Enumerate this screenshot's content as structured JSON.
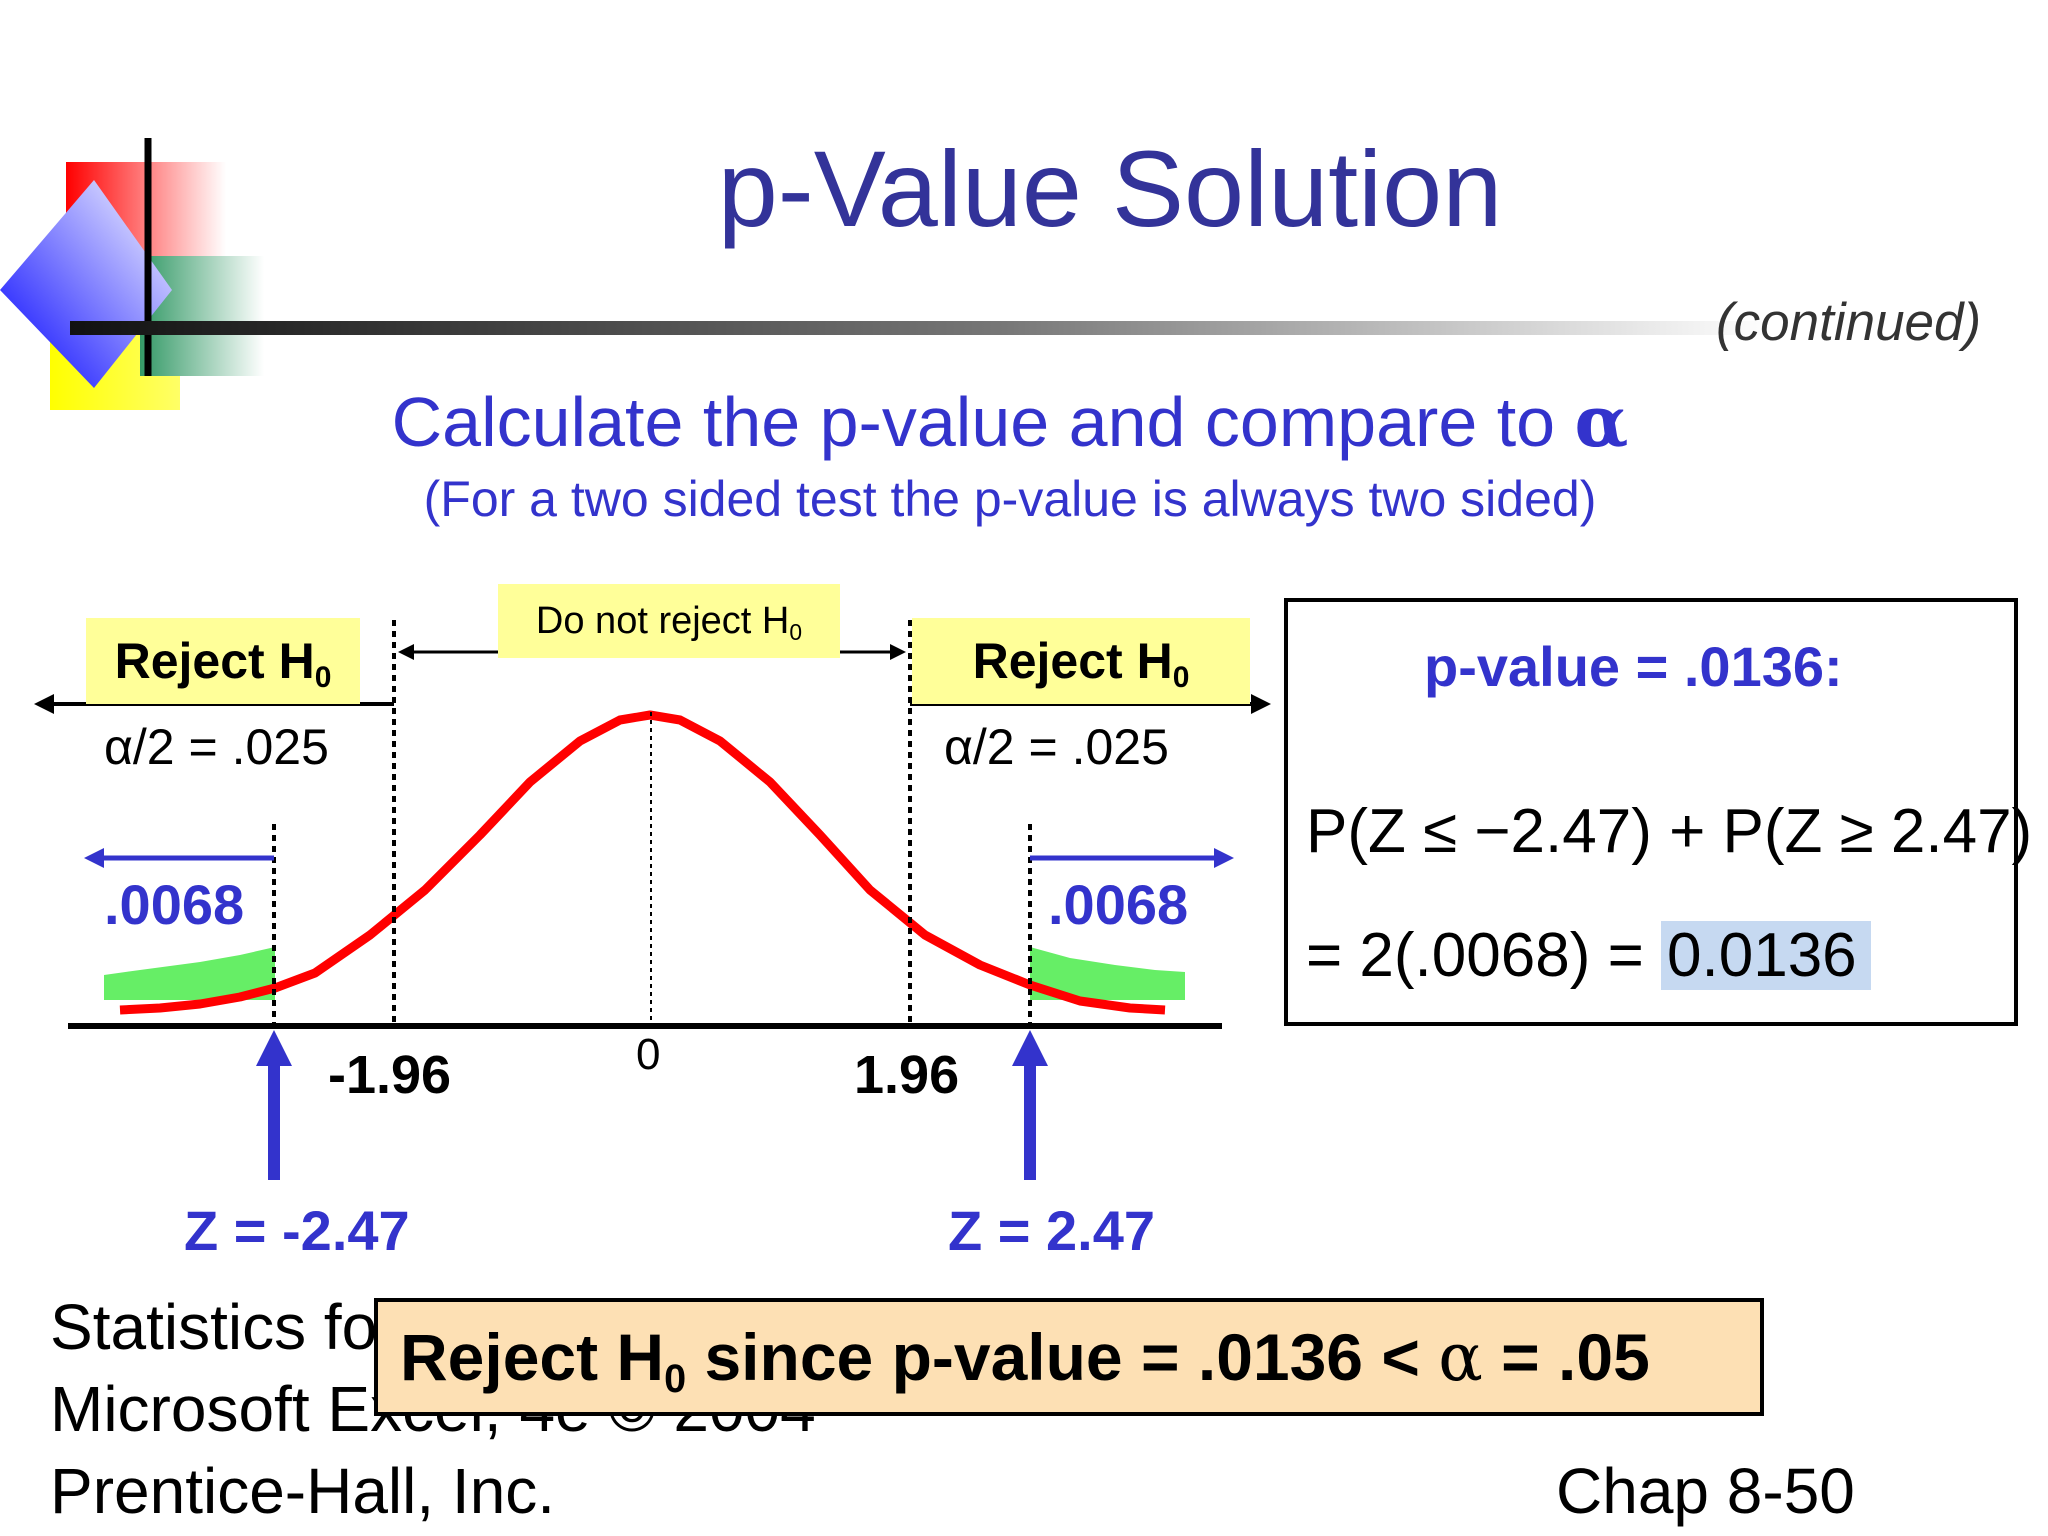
{
  "slide": {
    "title": "p-Value Solution",
    "continued": "(continued)",
    "subtitle": "Calculate the p-value and compare to ",
    "subtitle_symbol": "α",
    "note": "(For a two sided test the p-value is always two sided)"
  },
  "diagram": {
    "reject_label": "Reject H",
    "do_not_reject_label": "Do not reject H",
    "hypothesis_subscript": "0",
    "alpha_half_left": "α/2 = .025",
    "alpha_half_right": "α/2 = .025",
    "tail_left": ".0068",
    "tail_right": ".0068",
    "critical_left": "-1.96",
    "critical_right": "1.96",
    "center": "0",
    "z_left": "Z = -2.47",
    "z_right": "Z = 2.47"
  },
  "pvalue_box": {
    "title": "p-value = .0136:",
    "equation_line1": "P(Z ≤ −2.47) + P(Z ≥ 2.47)",
    "equation_line2_prefix": "= 2(.0068) = ",
    "equation_line2_result": "0.0136"
  },
  "conclusion": {
    "text_a": "Reject H",
    "subscript": "0",
    "text_b": " since p-value = .0136 < ",
    "alpha": "α",
    "text_c": " = .05"
  },
  "footer": {
    "line1": "Statistics fo",
    "line2": "Microsoft Excel, 4e © 2004",
    "line3": "Prentice-Hall, Inc.",
    "chapter": "Chap 8-50"
  },
  "colors": {
    "title": "#333399",
    "accent_blue": "#3333cc",
    "curve": "#ff0000",
    "tail_fill": "#66ee66",
    "label_bg": "#ffff99",
    "highlight": "#c6d9f1",
    "conclusion_bg": "#fde0b4"
  }
}
